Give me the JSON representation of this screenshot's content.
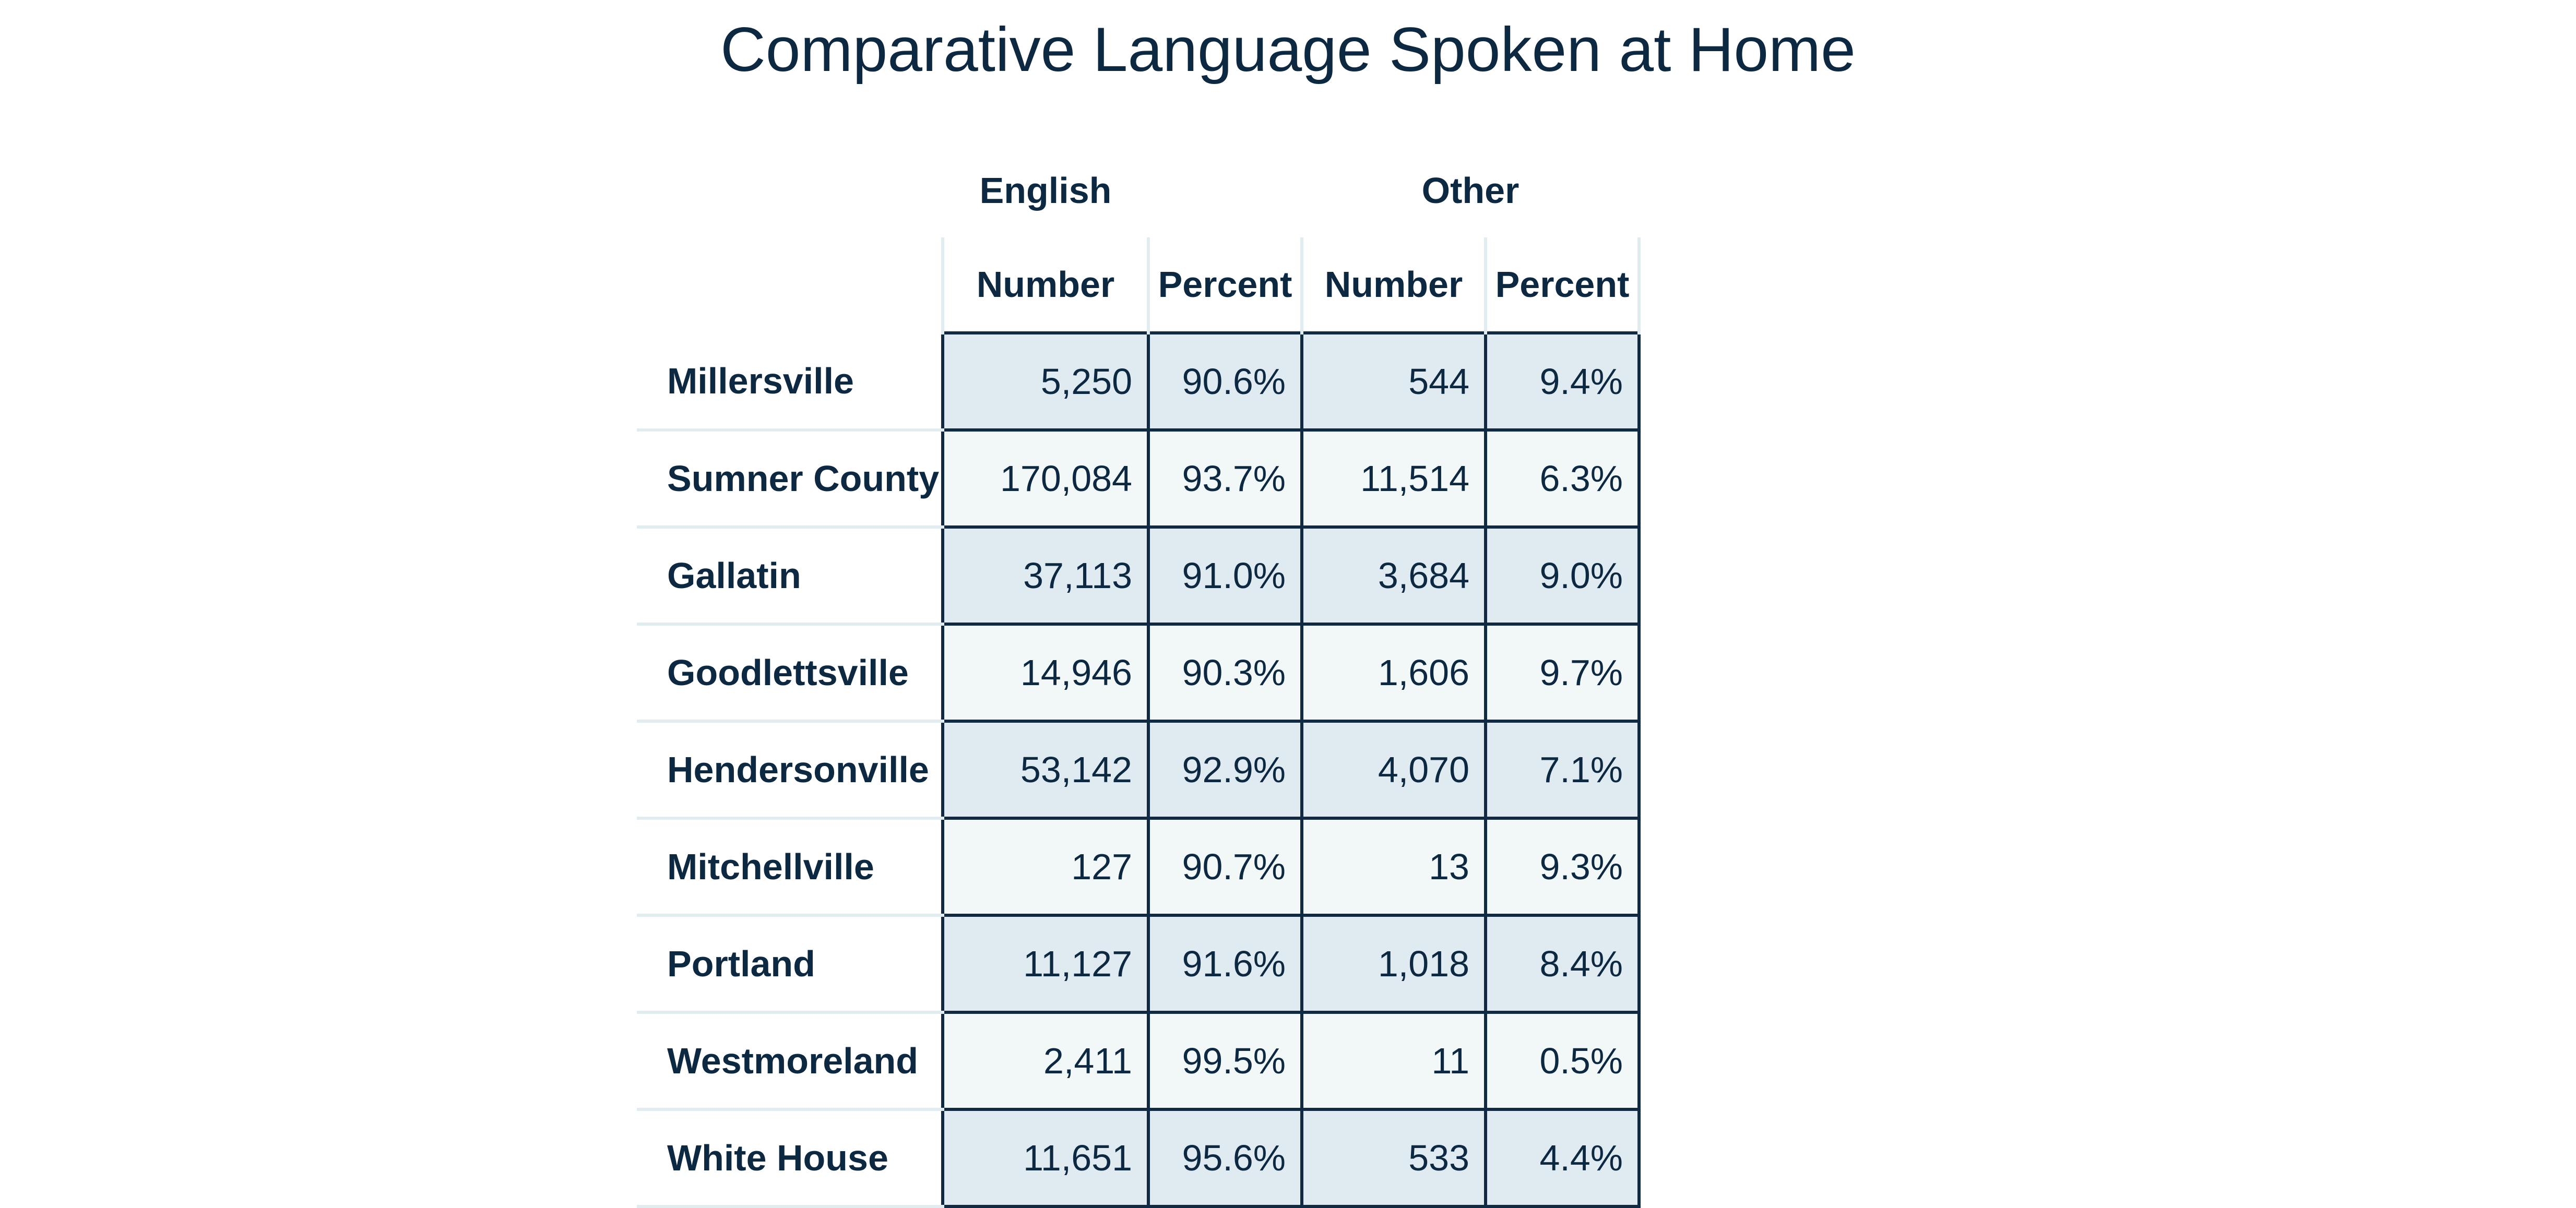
{
  "title": "Comparative Language Spoken at Home",
  "groups": [
    "English",
    "Other"
  ],
  "columns": [
    "Number",
    "Percent",
    "Number",
    "Percent"
  ],
  "rows": [
    {
      "place": "Millersville",
      "english_number": "5,250",
      "english_percent": "90.6%",
      "other_number": "544",
      "other_percent": "9.4%"
    },
    {
      "place": "Sumner County",
      "english_number": "170,084",
      "english_percent": "93.7%",
      "other_number": "11,514",
      "other_percent": "6.3%"
    },
    {
      "place": "Gallatin",
      "english_number": "37,113",
      "english_percent": "91.0%",
      "other_number": "3,684",
      "other_percent": "9.0%"
    },
    {
      "place": "Goodlettsville",
      "english_number": "14,946",
      "english_percent": "90.3%",
      "other_number": "1,606",
      "other_percent": "9.7%"
    },
    {
      "place": "Hendersonville",
      "english_number": "53,142",
      "english_percent": "92.9%",
      "other_number": "4,070",
      "other_percent": "7.1%"
    },
    {
      "place": "Mitchellville",
      "english_number": "127",
      "english_percent": "90.7%",
      "other_number": "13",
      "other_percent": "9.3%"
    },
    {
      "place": "Portland",
      "english_number": "11,127",
      "english_percent": "91.6%",
      "other_number": "1,018",
      "other_percent": "8.4%"
    },
    {
      "place": "Westmoreland",
      "english_number": "2,411",
      "english_percent": "99.5%",
      "other_number": "11",
      "other_percent": "0.5%"
    },
    {
      "place": "White House",
      "english_number": "11,651",
      "english_percent": "95.6%",
      "other_number": "533",
      "other_percent": "4.4%"
    }
  ]
}
